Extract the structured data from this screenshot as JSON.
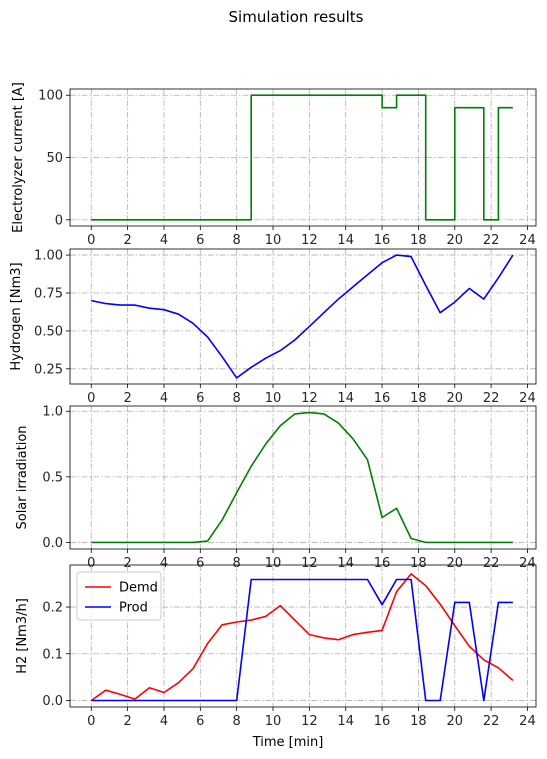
{
  "figure": {
    "title": "Simulation results"
  },
  "chart_data": [
    {
      "type": "line",
      "id": "current",
      "title": "",
      "xlabel": "",
      "ylabel": "Electrolyzer current [A]",
      "xlim": [
        -1.17,
        24.47
      ],
      "ylim": [
        -5,
        105
      ],
      "xticks": [
        0,
        2,
        4,
        6,
        8,
        10,
        12,
        14,
        16,
        18,
        20,
        22,
        24
      ],
      "yticks": [
        0,
        50,
        100
      ],
      "ytick_labels": [
        "0",
        "50",
        "100"
      ],
      "grid": true,
      "series": [
        {
          "name": "",
          "color": "#008000",
          "step": true,
          "x": [
            0,
            8.8,
            8.8,
            16.0,
            16.0,
            16.8,
            16.8,
            18.4,
            18.4,
            20.0,
            20.0,
            21.6,
            21.6,
            22.4,
            22.4,
            23.2
          ],
          "y": [
            0,
            0,
            100,
            100,
            90,
            90,
            100,
            100,
            0,
            0,
            90,
            90,
            0,
            0,
            90,
            90
          ]
        }
      ]
    },
    {
      "type": "line",
      "id": "hydrogen",
      "title": "",
      "xlabel": "",
      "ylabel": "Hydrogen [Nm3]",
      "xlim": [
        -1.17,
        24.47
      ],
      "ylim": [
        0.15,
        1.04
      ],
      "xticks": [
        0,
        2,
        4,
        6,
        8,
        10,
        12,
        14,
        16,
        18,
        20,
        22,
        24
      ],
      "yticks": [
        0.25,
        0.5,
        0.75,
        1.0
      ],
      "ytick_labels": [
        "0.25",
        "0.50",
        "0.75",
        "1.00"
      ],
      "grid": true,
      "series": [
        {
          "name": "",
          "color": "#0000ff",
          "x": [
            0,
            0.8,
            1.6,
            2.4,
            3.2,
            4.0,
            4.8,
            5.6,
            6.4,
            7.2,
            8.0,
            8.8,
            9.6,
            10.4,
            11.2,
            12.0,
            12.8,
            13.6,
            14.4,
            15.2,
            16.0,
            16.8,
            17.6,
            18.4,
            19.2,
            20.0,
            20.8,
            21.6,
            22.4,
            23.2
          ],
          "y": [
            0.7,
            0.68,
            0.67,
            0.67,
            0.65,
            0.64,
            0.61,
            0.55,
            0.46,
            0.33,
            0.19,
            0.26,
            0.32,
            0.37,
            0.44,
            0.53,
            0.62,
            0.71,
            0.79,
            0.87,
            0.95,
            1.0,
            0.99,
            0.8,
            0.62,
            0.69,
            0.78,
            0.71,
            0.85,
            1.0
          ]
        }
      ]
    },
    {
      "type": "line",
      "id": "solar",
      "title": "",
      "xlabel": "",
      "ylabel": "Solar irradiation",
      "xlim": [
        -1.17,
        24.47
      ],
      "ylim": [
        -0.05,
        1.04
      ],
      "xticks": [
        0,
        2,
        4,
        6,
        8,
        10,
        12,
        14,
        16,
        18,
        20,
        22,
        24
      ],
      "yticks": [
        0.0,
        0.5,
        1.0
      ],
      "ytick_labels": [
        "0.0",
        "0.5",
        "1.0"
      ],
      "grid": true,
      "series": [
        {
          "name": "",
          "color": "#008000",
          "x": [
            0,
            0.8,
            1.6,
            2.4,
            3.2,
            4.0,
            4.8,
            5.6,
            6.4,
            7.2,
            8.0,
            8.8,
            9.6,
            10.4,
            11.2,
            12.0,
            12.8,
            13.6,
            14.4,
            15.2,
            16.0,
            16.8,
            17.6,
            18.4,
            19.2,
            20.0,
            20.8,
            21.6,
            22.4,
            23.2
          ],
          "y": [
            0,
            0,
            0,
            0,
            0,
            0,
            0,
            0,
            0.01,
            0.17,
            0.38,
            0.58,
            0.75,
            0.89,
            0.98,
            0.99,
            0.98,
            0.91,
            0.79,
            0.63,
            0.19,
            0.26,
            0.03,
            0,
            0,
            0,
            0,
            0,
            0,
            0
          ]
        }
      ]
    },
    {
      "type": "line",
      "id": "h2",
      "title": "",
      "xlabel": "Time [min]",
      "ylabel": "H2 [Nm3/h]",
      "xlim": [
        -1.17,
        24.47
      ],
      "ylim": [
        -0.014,
        0.29
      ],
      "xticks": [
        0,
        2,
        4,
        6,
        8,
        10,
        12,
        14,
        16,
        18,
        20,
        22,
        24
      ],
      "yticks": [
        0.0,
        0.1,
        0.2
      ],
      "ytick_labels": [
        "0.0",
        "0.1",
        "0.2"
      ],
      "grid": true,
      "legend": "upper-left",
      "series": [
        {
          "name": "Demd",
          "color": "#ff0000",
          "x": [
            0,
            0.8,
            1.6,
            2.4,
            3.2,
            4.0,
            4.8,
            5.6,
            6.4,
            7.2,
            8.0,
            8.8,
            9.6,
            10.4,
            11.2,
            12.0,
            12.8,
            13.6,
            14.4,
            15.2,
            16.0,
            16.8,
            17.6,
            18.4,
            19.2,
            20.0,
            20.8,
            21.6,
            22.4,
            23.2
          ],
          "y": [
            0.0,
            0.022,
            0.013,
            0.003,
            0.027,
            0.017,
            0.038,
            0.068,
            0.122,
            0.162,
            0.168,
            0.172,
            0.18,
            0.203,
            0.172,
            0.141,
            0.134,
            0.13,
            0.141,
            0.146,
            0.15,
            0.233,
            0.271,
            0.246,
            0.206,
            0.16,
            0.116,
            0.087,
            0.07,
            0.043
          ]
        },
        {
          "name": "Prod",
          "color": "#0000ff",
          "x": [
            0,
            0.8,
            1.6,
            2.4,
            3.2,
            4.0,
            4.8,
            5.6,
            6.4,
            7.2,
            8.0,
            8.8,
            9.6,
            10.4,
            11.2,
            12.0,
            12.8,
            13.6,
            14.4,
            15.2,
            16.0,
            16.8,
            17.6,
            18.4,
            19.2,
            20.0,
            20.8,
            21.6,
            22.4,
            23.2
          ],
          "y": [
            0,
            0,
            0,
            0,
            0,
            0,
            0,
            0,
            0,
            0,
            0,
            0.259,
            0.259,
            0.259,
            0.259,
            0.259,
            0.259,
            0.259,
            0.259,
            0.259,
            0.205,
            0.259,
            0.259,
            0,
            0,
            0.21,
            0.21,
            0,
            0.21,
            0.21
          ]
        }
      ]
    }
  ]
}
